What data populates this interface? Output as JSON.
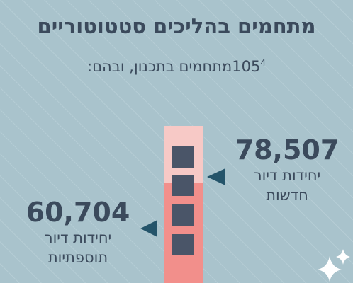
{
  "title": "מתחמים בהליכים סטטוטוריים",
  "subtitle": {
    "count": "105",
    "footnote": "4",
    "text": "מתחמים בתכנון, ובהם:"
  },
  "stats": [
    {
      "number": "78,507",
      "line1": "יחידות דיור",
      "line2": "חדשות"
    },
    {
      "number": "60,704",
      "line1": "יחידות דיור",
      "line2": "תוספתיות"
    }
  ]
}
